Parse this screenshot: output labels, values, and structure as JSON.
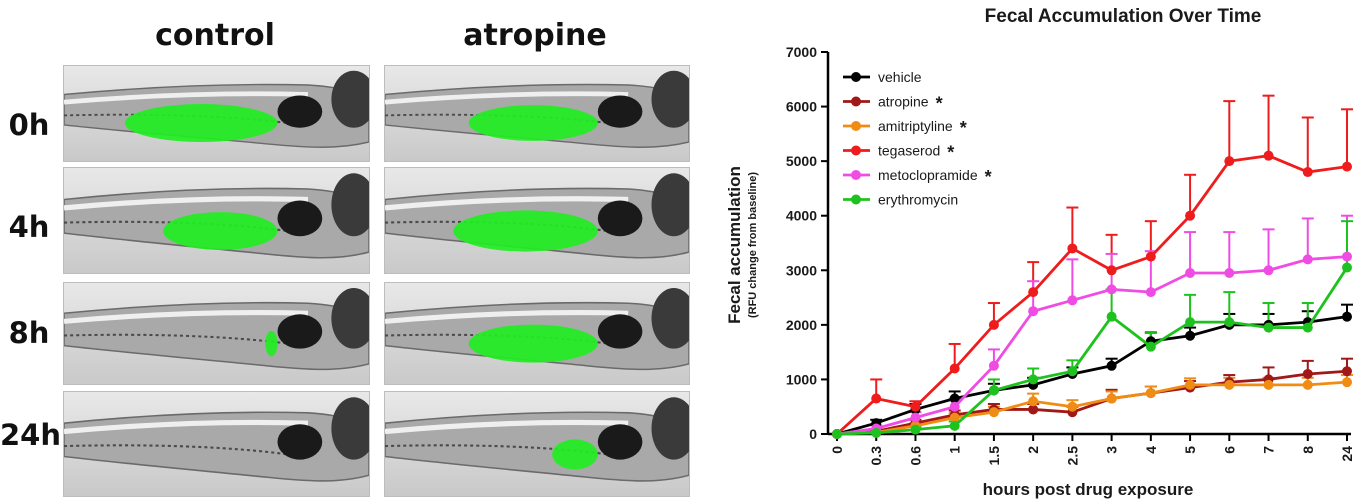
{
  "figure": {
    "columns": [
      "control",
      "atropine"
    ],
    "rows": [
      "0h",
      "4h",
      "8h",
      "24h"
    ],
    "fluorescence_coverage": {
      "control": [
        1.0,
        0.75,
        0.08,
        0.0
      ],
      "atropine": [
        0.85,
        0.95,
        0.85,
        0.3
      ]
    }
  },
  "chart_data": {
    "type": "line",
    "title": "Fecal Accumulation Over Time",
    "xlabel": "hours post drug exposure",
    "ylabel": "Fecal accumulation",
    "ylabel_sub": "(RFU change from baseline)",
    "categories": [
      "0",
      "0.3",
      "0.6",
      "1",
      "1.5",
      "2",
      "2.5",
      "3",
      "4",
      "5",
      "6",
      "7",
      "8",
      "24"
    ],
    "yticks": [
      0,
      1000,
      2000,
      3000,
      4000,
      5000,
      6000,
      7000
    ],
    "ylim": [
      0,
      7000
    ],
    "legend_position": "top-left",
    "significance_marker": "*",
    "series": [
      {
        "name": "vehicle",
        "color": "#000000",
        "significant": false,
        "values": [
          0,
          200,
          450,
          650,
          800,
          900,
          1100,
          1250,
          1700,
          1800,
          2000,
          2000,
          2050,
          2150
        ],
        "errors": [
          0,
          60,
          100,
          130,
          120,
          130,
          120,
          130,
          160,
          150,
          200,
          200,
          200,
          220
        ]
      },
      {
        "name": "atropine",
        "color": "#a01818",
        "significant": true,
        "values": [
          0,
          50,
          200,
          350,
          450,
          450,
          400,
          650,
          750,
          850,
          950,
          1000,
          1100,
          1150
        ],
        "errors": [
          0,
          30,
          60,
          80,
          100,
          100,
          100,
          160,
          120,
          120,
          130,
          220,
          240,
          230
        ]
      },
      {
        "name": "amitriptyline",
        "color": "#f08c14",
        "significant": true,
        "values": [
          0,
          30,
          150,
          300,
          400,
          600,
          500,
          650,
          750,
          900,
          900,
          900,
          900,
          950
        ],
        "errors": [
          0,
          20,
          50,
          80,
          100,
          140,
          120,
          130,
          120,
          120,
          130,
          130,
          130,
          130
        ]
      },
      {
        "name": "tegaserod",
        "color": "#ee1c1c",
        "significant": true,
        "values": [
          0,
          650,
          500,
          1200,
          2000,
          2600,
          3400,
          3000,
          3250,
          4000,
          5000,
          5100,
          4800,
          4900
        ],
        "errors": [
          0,
          350,
          100,
          450,
          400,
          550,
          750,
          650,
          650,
          750,
          1100,
          1100,
          1000,
          1050
        ]
      },
      {
        "name": "metoclopramide",
        "color": "#f04ce4",
        "significant": true,
        "values": [
          0,
          100,
          300,
          500,
          1250,
          2250,
          2450,
          2650,
          2600,
          2950,
          2950,
          3000,
          3200,
          3250
        ],
        "errors": [
          0,
          60,
          100,
          150,
          300,
          550,
          750,
          650,
          750,
          750,
          750,
          750,
          750,
          750
        ]
      },
      {
        "name": "erythromycin",
        "color": "#1ec21e",
        "significant": false,
        "values": [
          0,
          20,
          80,
          150,
          800,
          1000,
          1150,
          2150,
          1600,
          2050,
          2050,
          1950,
          1950,
          3050
        ],
        "errors": [
          0,
          20,
          50,
          80,
          200,
          200,
          200,
          500,
          250,
          500,
          550,
          450,
          450,
          850
        ]
      }
    ]
  }
}
